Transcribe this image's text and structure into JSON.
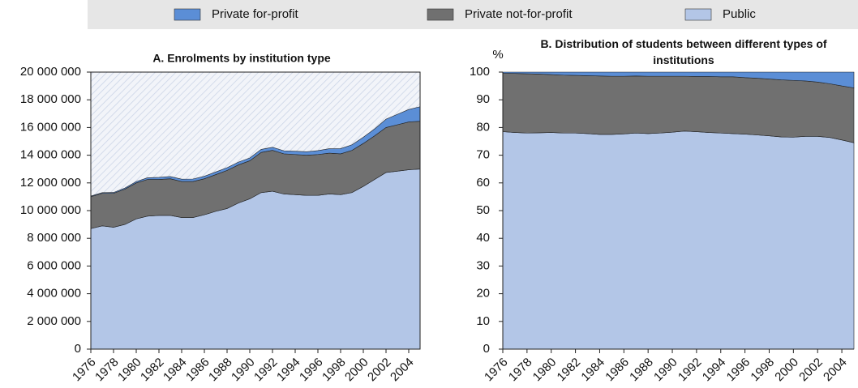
{
  "chart_data": [
    {
      "type": "stacked_area",
      "title": "A. Enrolments by institution type",
      "x": [
        1976,
        1977,
        1978,
        1979,
        1980,
        1981,
        1982,
        1983,
        1984,
        1985,
        1986,
        1987,
        1988,
        1989,
        1990,
        1991,
        1992,
        1993,
        1994,
        1995,
        1996,
        1997,
        1998,
        1999,
        2000,
        2001,
        2002,
        2003,
        2004,
        2005
      ],
      "xlim": [
        1976,
        2005
      ],
      "xticks": [
        1976,
        1978,
        1980,
        1982,
        1984,
        1986,
        1988,
        1990,
        1992,
        1994,
        1996,
        1998,
        2000,
        2002,
        2004
      ],
      "ylim": [
        0,
        20000000
      ],
      "yticks": [
        0,
        {
          "value": 2000000,
          "label": "2 000 000"
        },
        {
          "value": 4000000,
          "label": "4 000 000"
        },
        {
          "value": 6000000,
          "label": "6 000 000"
        },
        {
          "value": 8000000,
          "label": "8 000 000"
        },
        {
          "value": 10000000,
          "label": "10 000 000"
        },
        {
          "value": 12000000,
          "label": "12 000 000"
        },
        {
          "value": 14000000,
          "label": "14 000 000"
        },
        {
          "value": 16000000,
          "label": "16 000 000"
        },
        {
          "value": 18000000,
          "label": "18 000 000"
        },
        {
          "value": 20000000,
          "label": "20 000 000"
        }
      ],
      "series": [
        {
          "name": "Private for-profit",
          "color": "#5b8ed6",
          "values": [
            50000,
            50000,
            60000,
            80000,
            100000,
            120000,
            150000,
            160000,
            170000,
            180000,
            180000,
            190000,
            200000,
            200000,
            200000,
            220000,
            220000,
            220000,
            240000,
            250000,
            280000,
            320000,
            380000,
            400000,
            450000,
            500000,
            600000,
            750000,
            900000,
            1050000
          ]
        },
        {
          "name": "Private not-for-profit",
          "color": "#707070",
          "values": [
            2300000,
            2350000,
            2450000,
            2550000,
            2600000,
            2650000,
            2600000,
            2650000,
            2600000,
            2600000,
            2600000,
            2650000,
            2750000,
            2750000,
            2750000,
            2900000,
            2950000,
            2900000,
            2900000,
            2900000,
            2950000,
            2950000,
            2950000,
            3050000,
            3100000,
            3150000,
            3250000,
            3350000,
            3450000,
            3450000
          ]
        },
        {
          "name": "Public",
          "color": "#b3c6e7",
          "values": [
            8700000,
            8900000,
            8800000,
            9000000,
            9400000,
            9600000,
            9650000,
            9650000,
            9500000,
            9500000,
            9700000,
            9950000,
            10150000,
            10550000,
            10850000,
            11300000,
            11400000,
            11200000,
            11150000,
            11100000,
            11100000,
            11200000,
            11150000,
            11300000,
            11750000,
            12250000,
            12750000,
            12850000,
            12950000,
            13000000
          ]
        }
      ]
    },
    {
      "type": "stacked_area",
      "title": "B. Distribution of students between different types of institutions",
      "y_label": "%",
      "x": [
        1976,
        1977,
        1978,
        1979,
        1980,
        1981,
        1982,
        1983,
        1984,
        1985,
        1986,
        1987,
        1988,
        1989,
        1990,
        1991,
        1992,
        1993,
        1994,
        1995,
        1996,
        1997,
        1998,
        1999,
        2000,
        2001,
        2002,
        2003,
        2004,
        2005
      ],
      "xlim": [
        1976,
        2005
      ],
      "xticks": [
        1976,
        1978,
        1980,
        1982,
        1984,
        1986,
        1988,
        1990,
        1992,
        1994,
        1996,
        1998,
        2000,
        2002,
        2004
      ],
      "ylim": [
        0,
        100
      ],
      "yticks": [
        0,
        10,
        20,
        30,
        40,
        50,
        60,
        70,
        80,
        90,
        100
      ],
      "series": [
        {
          "color": "#5b8ed6",
          "values": [
            0.4,
            0.5,
            0.6,
            0.7,
            0.9,
            1.1,
            1.2,
            1.3,
            1.4,
            1.5,
            1.5,
            1.4,
            1.5,
            1.5,
            1.5,
            1.5,
            1.6,
            1.6,
            1.7,
            1.7,
            2.0,
            2.2,
            2.5,
            2.8,
            3.0,
            3.2,
            3.6,
            4.2,
            5.0,
            5.7
          ]
        },
        {
          "color": "#707070",
          "values": [
            21.1,
            21.3,
            21.4,
            21.2,
            20.9,
            20.9,
            20.8,
            20.9,
            21.1,
            21.0,
            20.8,
            20.6,
            20.7,
            20.5,
            20.2,
            19.8,
            19.9,
            20.2,
            20.3,
            20.5,
            20.4,
            20.5,
            20.5,
            20.6,
            20.5,
            20.0,
            19.6,
            19.4,
            19.5,
            19.8
          ]
        },
        {
          "color": "#b3c6e7",
          "values": [
            78.5,
            78.2,
            78.0,
            78.1,
            78.2,
            78.0,
            78.0,
            77.8,
            77.5,
            77.5,
            77.7,
            78.0,
            77.8,
            78.0,
            78.3,
            78.7,
            78.5,
            78.2,
            78.0,
            77.8,
            77.6,
            77.3,
            77.0,
            76.6,
            76.5,
            76.8,
            76.8,
            76.4,
            75.5,
            74.5
          ]
        }
      ]
    }
  ]
}
